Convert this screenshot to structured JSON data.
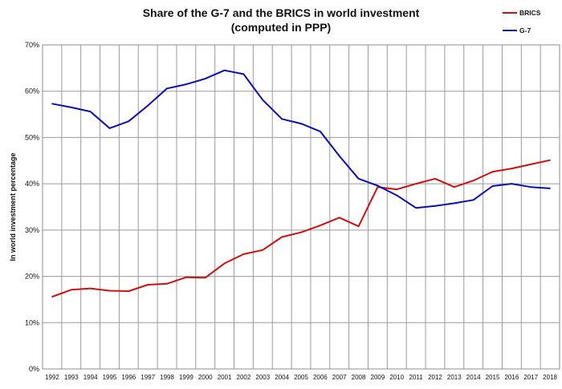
{
  "chart_data": {
    "type": "line",
    "title_lines": [
      "Share of the G-7 and the BRICS in world investment",
      "(computed in PPP)"
    ],
    "ylabel": "In world investment percentage",
    "xlabel": "",
    "ylim": [
      0,
      70
    ],
    "y_ticks": [
      0,
      10,
      20,
      30,
      40,
      50,
      60,
      70
    ],
    "y_tick_labels": [
      "0%",
      "10%",
      "20%",
      "30%",
      "40%",
      "50%",
      "60%",
      "70%"
    ],
    "grid": true,
    "legend_position": "top-right",
    "x": [
      "1992",
      "1993",
      "1994",
      "1995",
      "1996",
      "1997",
      "1998",
      "1999",
      "2000",
      "2001",
      "2002",
      "2003",
      "2004",
      "2005",
      "2006",
      "2007",
      "2008",
      "2009",
      "2010",
      "2011",
      "2012",
      "2013",
      "2014",
      "2015",
      "2016",
      "2017",
      "2018"
    ],
    "series": [
      {
        "name": "BRICS",
        "color": "#cc1111",
        "values": [
          15.6,
          17.1,
          17.4,
          16.9,
          16.8,
          18.2,
          18.4,
          19.8,
          19.7,
          22.8,
          24.8,
          25.7,
          28.5,
          29.5,
          31.0,
          32.7,
          30.8,
          39.3,
          38.8,
          40.0,
          41.1,
          39.3,
          40.7,
          42.6,
          43.3,
          44.2,
          45.1
        ]
      },
      {
        "name": "G-7",
        "color": "#0a10b0",
        "values": [
          57.3,
          56.5,
          55.6,
          52.0,
          53.5,
          56.9,
          60.6,
          61.5,
          62.7,
          64.5,
          63.7,
          58.1,
          54.0,
          53.0,
          51.3,
          46.0,
          41.1,
          39.6,
          37.5,
          34.8,
          35.2,
          35.8,
          36.5,
          39.5,
          40.0,
          39.3,
          39.0
        ]
      }
    ]
  }
}
